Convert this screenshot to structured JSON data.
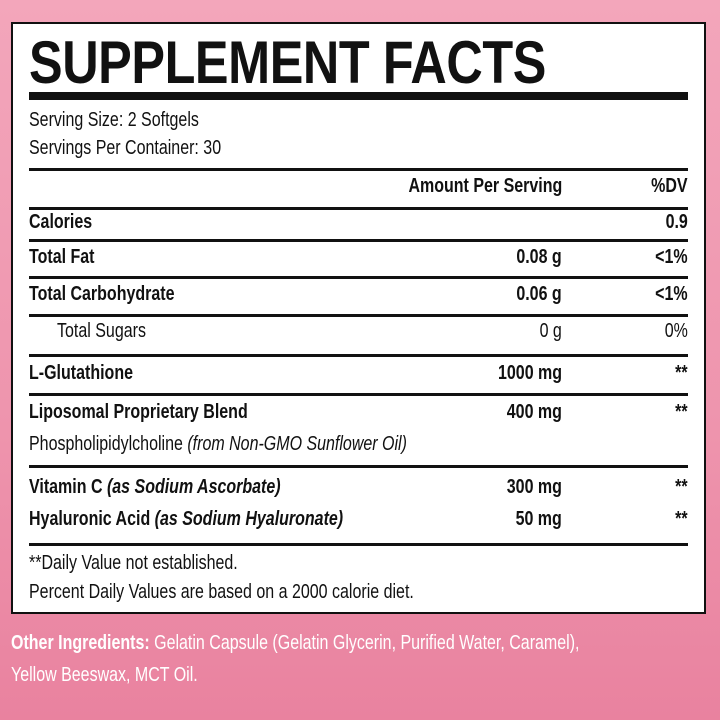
{
  "title": "SUPPLEMENT FACTS",
  "serving_size": "Serving Size: 2 Softgels",
  "servings_per_container": "Servings Per Container: 30",
  "header": {
    "amount": "Amount Per Serving",
    "dv": "%DV"
  },
  "rows": [
    {
      "name": "Calories",
      "amount": "",
      "dv": "0.9"
    },
    {
      "name": "Total Fat",
      "amount": "0.08 g",
      "dv": "<1%"
    },
    {
      "name": "Total Carbohydrate",
      "amount": "0.06 g",
      "dv": "<1%"
    },
    {
      "name": "Total Sugars",
      "amount": "0 g",
      "dv": "0%"
    },
    {
      "name": "L-Glutathione",
      "amount": "1000 mg",
      "dv": "**"
    },
    {
      "name": "Liposomal Proprietary Blend",
      "amount": "400 mg",
      "dv": "**",
      "sub": "Phospholipidylcholine",
      "sub_note": "(from Non-GMO Sunflower Oil)"
    },
    {
      "name": "Vitamin C",
      "note": "(as Sodium Ascorbate)",
      "amount": "300 mg",
      "dv": "**"
    },
    {
      "name": "Hyaluronic Acid",
      "note": "(as Sodium Hyaluronate)",
      "amount": "50 mg",
      "dv": "**"
    }
  ],
  "footnotes": [
    "**Daily Value not established.",
    "Percent Daily Values are based on a 2000 calorie diet."
  ],
  "other_ingredients": {
    "label": "Other Ingredients:",
    "line1": "Gelatin Capsule (Gelatin Glycerin, Purified Water, Caramel),",
    "line2": "Yellow Beeswax, MCT Oil."
  },
  "colors": {
    "background": "#ee94ad",
    "text": "#111111",
    "other_text": "#ffffff"
  }
}
